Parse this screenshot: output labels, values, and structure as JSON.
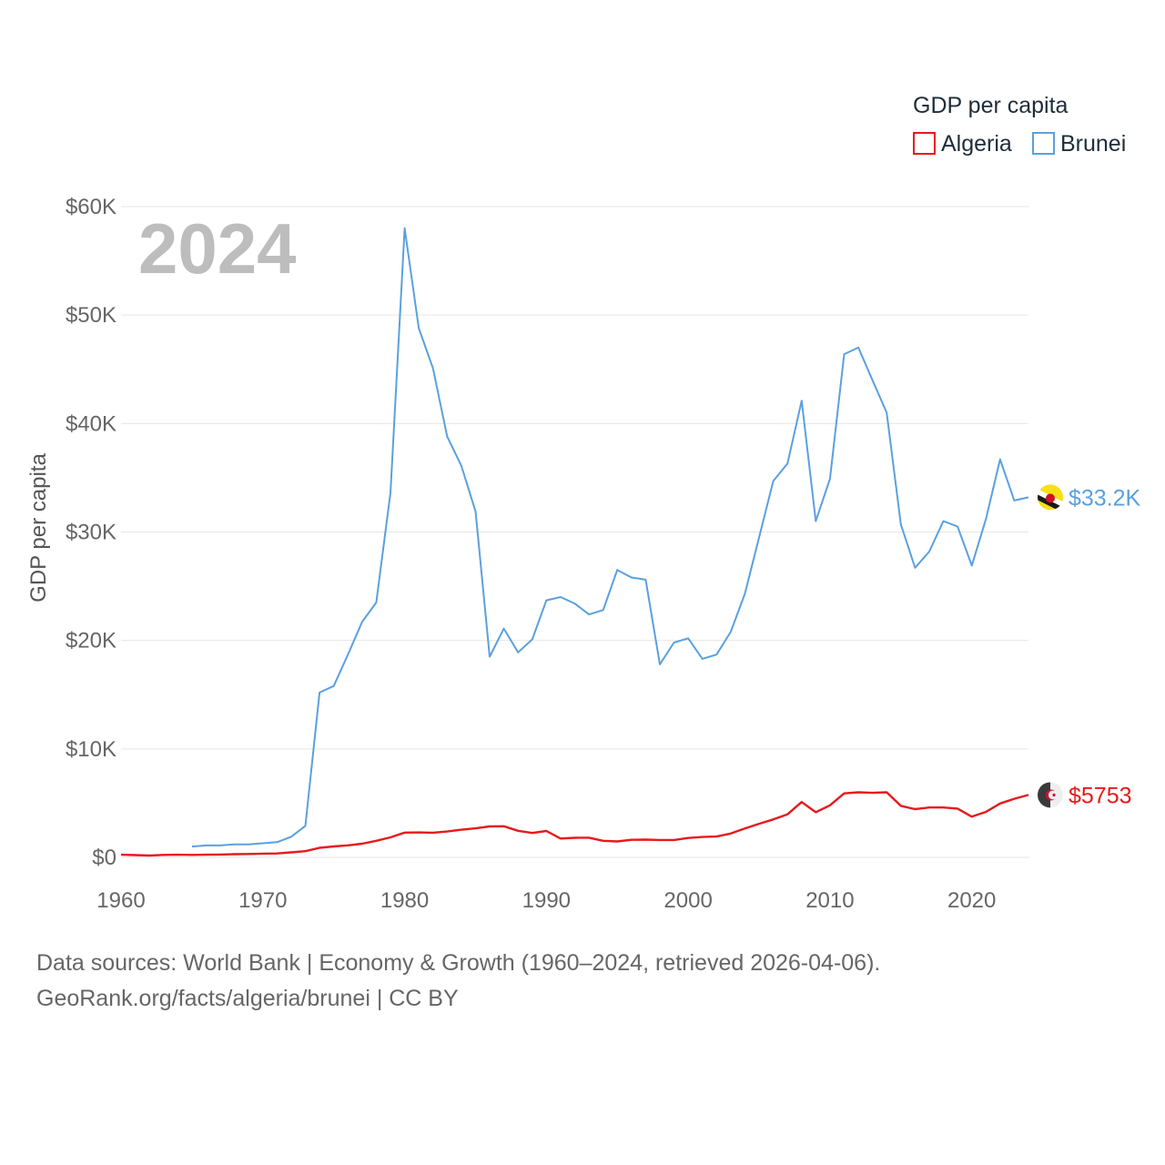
{
  "chart_data": {
    "type": "line",
    "title": "",
    "year_overlay": "2024",
    "ylabel": "GDP per capita",
    "xlabel": "",
    "legend_title": "GDP per capita",
    "legend_position": "top-right",
    "xlim": [
      1960,
      2024
    ],
    "ylim": [
      0,
      60000
    ],
    "x_ticks": [
      1960,
      1970,
      1980,
      1990,
      2000,
      2010,
      2020
    ],
    "x_tick_labels": [
      "1960",
      "1970",
      "1980",
      "1990",
      "2000",
      "2010",
      "2020"
    ],
    "y_ticks": [
      0,
      10000,
      20000,
      30000,
      40000,
      50000,
      60000
    ],
    "y_tick_labels": [
      "$0",
      "$10K",
      "$20K",
      "$30K",
      "$40K",
      "$50K",
      "$60K"
    ],
    "grid": true,
    "series": [
      {
        "name": "Algeria",
        "color": "#e8191c",
        "end_label": "$5753",
        "flag_icon": "algeria-flag-icon",
        "x": [
          1960,
          1961,
          1962,
          1963,
          1964,
          1965,
          1966,
          1967,
          1968,
          1969,
          1970,
          1971,
          1972,
          1973,
          1974,
          1975,
          1976,
          1977,
          1978,
          1979,
          1980,
          1981,
          1982,
          1983,
          1984,
          1985,
          1986,
          1987,
          1988,
          1989,
          1990,
          1991,
          1992,
          1993,
          1994,
          1995,
          1996,
          1997,
          1998,
          1999,
          2000,
          2001,
          2002,
          2003,
          2004,
          2005,
          2006,
          2007,
          2008,
          2009,
          2010,
          2011,
          2012,
          2013,
          2014,
          2015,
          2016,
          2017,
          2018,
          2019,
          2020,
          2021,
          2022,
          2023,
          2024
        ],
        "values": [
          240,
          210,
          170,
          230,
          240,
          230,
          240,
          260,
          290,
          310,
          340,
          360,
          460,
          570,
          880,
          1010,
          1110,
          1260,
          1530,
          1850,
          2280,
          2300,
          2270,
          2380,
          2550,
          2680,
          2850,
          2870,
          2450,
          2250,
          2430,
          1740,
          1800,
          1810,
          1530,
          1470,
          1620,
          1640,
          1600,
          1600,
          1790,
          1880,
          1920,
          2200,
          2660,
          3100,
          3500,
          3970,
          5100,
          4160,
          4800,
          5900,
          6000,
          5950,
          6000,
          4750,
          4450,
          4600,
          4600,
          4500,
          3750,
          4200,
          4970,
          5400,
          5753
        ]
      },
      {
        "name": "Brunei",
        "color": "#5aa0e0",
        "end_label": "$33.2K",
        "flag_icon": "brunei-flag-icon",
        "x": [
          1965,
          1966,
          1967,
          1968,
          1969,
          1970,
          1971,
          1972,
          1973,
          1974,
          1975,
          1976,
          1977,
          1978,
          1979,
          1980,
          1981,
          1982,
          1983,
          1984,
          1985,
          1986,
          1987,
          1988,
          1989,
          1990,
          1991,
          1992,
          1993,
          1994,
          1995,
          1996,
          1997,
          1998,
          1999,
          2000,
          2001,
          2002,
          2003,
          2004,
          2005,
          2006,
          2007,
          2008,
          2009,
          2010,
          2011,
          2012,
          2013,
          2014,
          2015,
          2016,
          2017,
          2018,
          2019,
          2020,
          2021,
          2022,
          2023,
          2024
        ],
        "values": [
          1000,
          1100,
          1100,
          1200,
          1200,
          1300,
          1400,
          1900,
          2900,
          15200,
          15800,
          18700,
          21700,
          23500,
          33600,
          58000,
          48800,
          45100,
          38800,
          36100,
          31900,
          18500,
          21100,
          18900,
          20100,
          23700,
          24000,
          23400,
          22400,
          22800,
          26500,
          25800,
          25600,
          17800,
          19800,
          20200,
          18300,
          18700,
          20800,
          24300,
          29500,
          34700,
          36300,
          42100,
          31000,
          34900,
          46400,
          47000,
          44000,
          41000,
          30700,
          26700,
          28200,
          31000,
          30500,
          26900,
          31200,
          36700,
          32900,
          33200
        ]
      }
    ]
  },
  "footer": {
    "line1": "Data sources: World Bank | Economy & Growth (1960–2024, retrieved 2026-04-06).",
    "line2": "GeoRank.org/facts/algeria/brunei | CC BY"
  }
}
